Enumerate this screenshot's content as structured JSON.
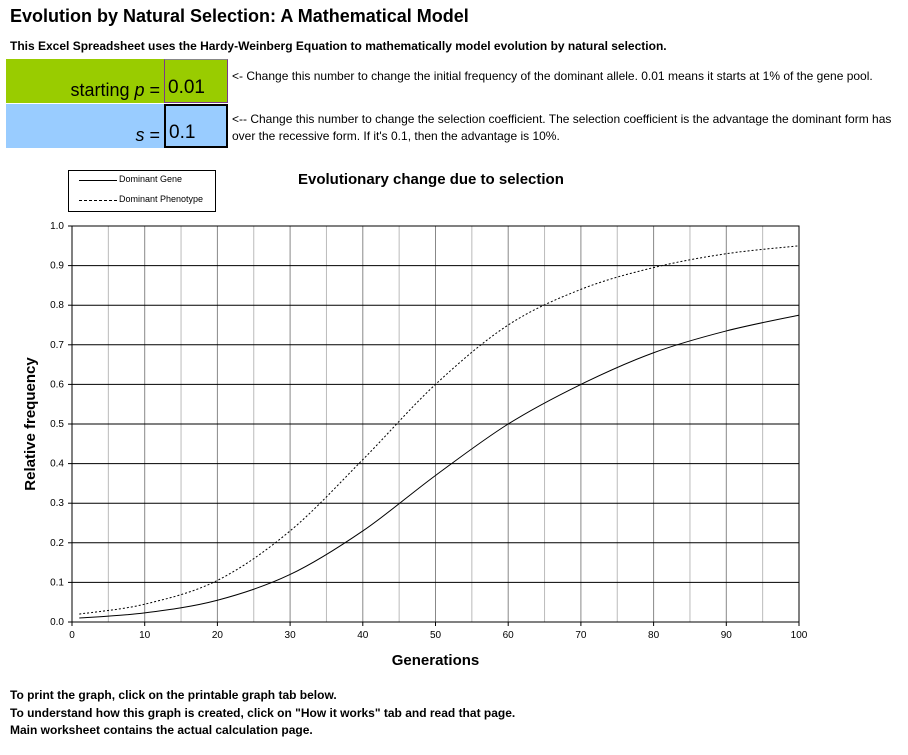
{
  "page": {
    "title": "Evolution by Natural Selection: A Mathematical Model",
    "subtitle": "This Excel Spreadsheet uses the Hardy-Weinberg Equation to mathematically model evolution by natural selection."
  },
  "inputs": {
    "p_label_prefix": "starting ",
    "p_label_var": "p",
    "p_label_suffix": " =",
    "p_value": "0.01",
    "p_note": "<- Change this number to change the initial frequency of the dominant allele. 0.01 means it starts at 1% of the gene pool.",
    "s_label_var": "s",
    "s_label_suffix": " =",
    "s_value": "0.1",
    "s_note": "<-- Change this number to change the selection coefficient. The selection coefficient is the advantage the dominant form has over the recessive form. If it's 0.1, then the advantage is 10%."
  },
  "footer": {
    "line1": "To print the graph, click on the printable graph tab below.",
    "line2": "To understand how this graph is created, click on \"How it works\" tab and read that page.",
    "line3": "Main worksheet contains the actual calculation page."
  },
  "chart_data": {
    "type": "line",
    "title": "Evolutionary change due to selection",
    "xlabel": "Generations",
    "ylabel": "Relative frequency",
    "xlim": [
      0,
      100
    ],
    "ylim": [
      0,
      1.0
    ],
    "x_ticks": [
      0,
      10,
      20,
      30,
      40,
      50,
      60,
      70,
      80,
      90,
      100
    ],
    "y_ticks": [
      "0.0",
      "0.1",
      "0.2",
      "0.3",
      "0.4",
      "0.5",
      "0.6",
      "0.7",
      "0.8",
      "0.9",
      "1.0"
    ],
    "grid": true,
    "legend_placement": "top-left",
    "x": [
      1,
      10,
      20,
      30,
      40,
      50,
      60,
      70,
      80,
      90,
      100
    ],
    "series": [
      {
        "name": "Dominant Gene",
        "style": "solid",
        "values": [
          0.01,
          0.023,
          0.055,
          0.12,
          0.23,
          0.37,
          0.5,
          0.6,
          0.68,
          0.735,
          0.775
        ]
      },
      {
        "name": "Dominant Phenotype",
        "style": "dashed",
        "values": [
          0.02,
          0.045,
          0.105,
          0.23,
          0.41,
          0.6,
          0.75,
          0.84,
          0.895,
          0.93,
          0.95
        ]
      }
    ]
  }
}
